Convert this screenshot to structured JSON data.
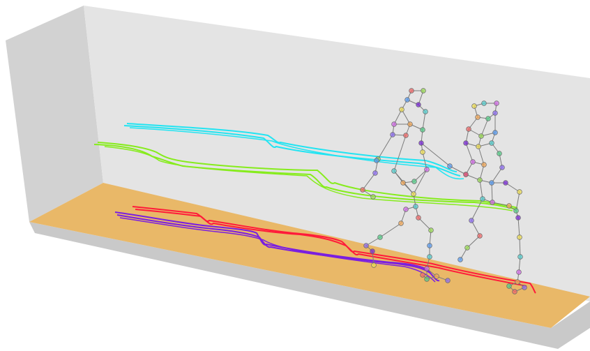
{
  "scene": {
    "colors": {
      "back_wall": "#e4e4e4",
      "side_wall": "#d2d2d2",
      "floor": "#e9b868",
      "floor_edge": "#c9c9c9",
      "bone": "#7a7a7a"
    },
    "trajectories": [
      {
        "name": "cyan-trail",
        "color": "#22e4f2"
      },
      {
        "name": "green-trail",
        "color": "#86ec1c"
      },
      {
        "name": "red-trail",
        "color": "#ff1a3a"
      },
      {
        "name": "purple-trail",
        "color": "#7a1ee0"
      }
    ],
    "figures": [
      {
        "name": "walker-front"
      },
      {
        "name": "walker-back"
      }
    ],
    "joint_palette": [
      "#f06a6a",
      "#f2a85a",
      "#eedd55",
      "#9bdc55",
      "#55cc88",
      "#55cccc",
      "#5a9cf0",
      "#8c6cf0",
      "#d26ce6",
      "#7a2ad6"
    ]
  }
}
